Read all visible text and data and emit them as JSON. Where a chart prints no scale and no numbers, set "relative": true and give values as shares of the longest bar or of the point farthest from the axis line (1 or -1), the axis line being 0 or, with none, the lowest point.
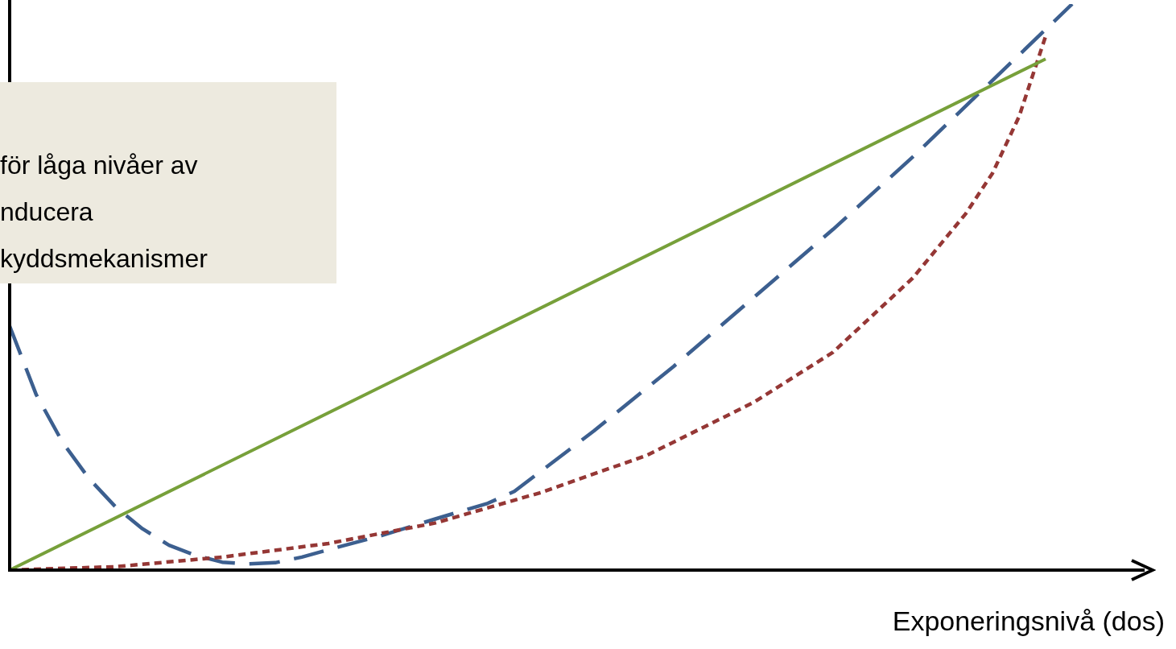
{
  "chart_data": {
    "type": "line",
    "relative": true,
    "xlabel": "Exponeringsnivå (dos)",
    "annotations": [
      "för låga nivåer av\nnducera\nkyddsmekanismer"
    ],
    "legend": false,
    "marker": "none",
    "categories": [
      null,
      null,
      null,
      null,
      null,
      null,
      null,
      null,
      null,
      null,
      null,
      null,
      null,
      null,
      null,
      null,
      null,
      null,
      null,
      null,
      null,
      null,
      null,
      null,
      null,
      null,
      null,
      null,
      null,
      null,
      null,
      null,
      null,
      null,
      null,
      null,
      null,
      null,
      null,
      null,
      null
    ],
    "series": [
      {
        "color": "#77a03a",
        "line_style": "solid",
        "values": [
          0,
          null,
          null,
          null,
          null,
          null,
          null,
          null,
          null,
          null,
          null,
          null,
          null,
          null,
          null,
          null,
          null,
          null,
          null,
          null,
          null,
          null,
          null,
          null,
          null,
          null,
          null,
          null,
          null,
          null,
          null,
          null,
          null,
          null,
          null,
          null,
          null,
          null,
          null,
          0.903,
          null
        ]
      },
      {
        "color": "#953735",
        "line_style": "dotted",
        "values": [
          0,
          null,
          null,
          null,
          0.006,
          null,
          null,
          null,
          0.023,
          null,
          null,
          null,
          0.047,
          null,
          null,
          null,
          0.083,
          null,
          null,
          null,
          0.137,
          null,
          null,
          null,
          0.203,
          null,
          null,
          null,
          0.296,
          null,
          null,
          0.385,
          null,
          null,
          0.516,
          null,
          0.63,
          0.701,
          0.801,
          0.943,
          null
        ]
      },
      {
        "color": "#3c5f8f",
        "line_style": "dashed",
        "values": [
          0.431,
          0.31,
          0.225,
          0.161,
          0.111,
          0.073,
          0.044,
          0.026,
          0.014,
          0.011,
          0.013,
          0.023,
          0.036,
          null,
          0.061,
          null,
          0.09,
          null,
          0.118,
          0.139,
          null,
          null,
          0.246,
          null,
          null,
          0.36,
          null,
          null,
          0.481,
          null,
          null,
          0.602,
          null,
          null,
          0.73,
          null,
          null,
          0.865,
          null,
          null,
          1
        ]
      }
    ]
  }
}
